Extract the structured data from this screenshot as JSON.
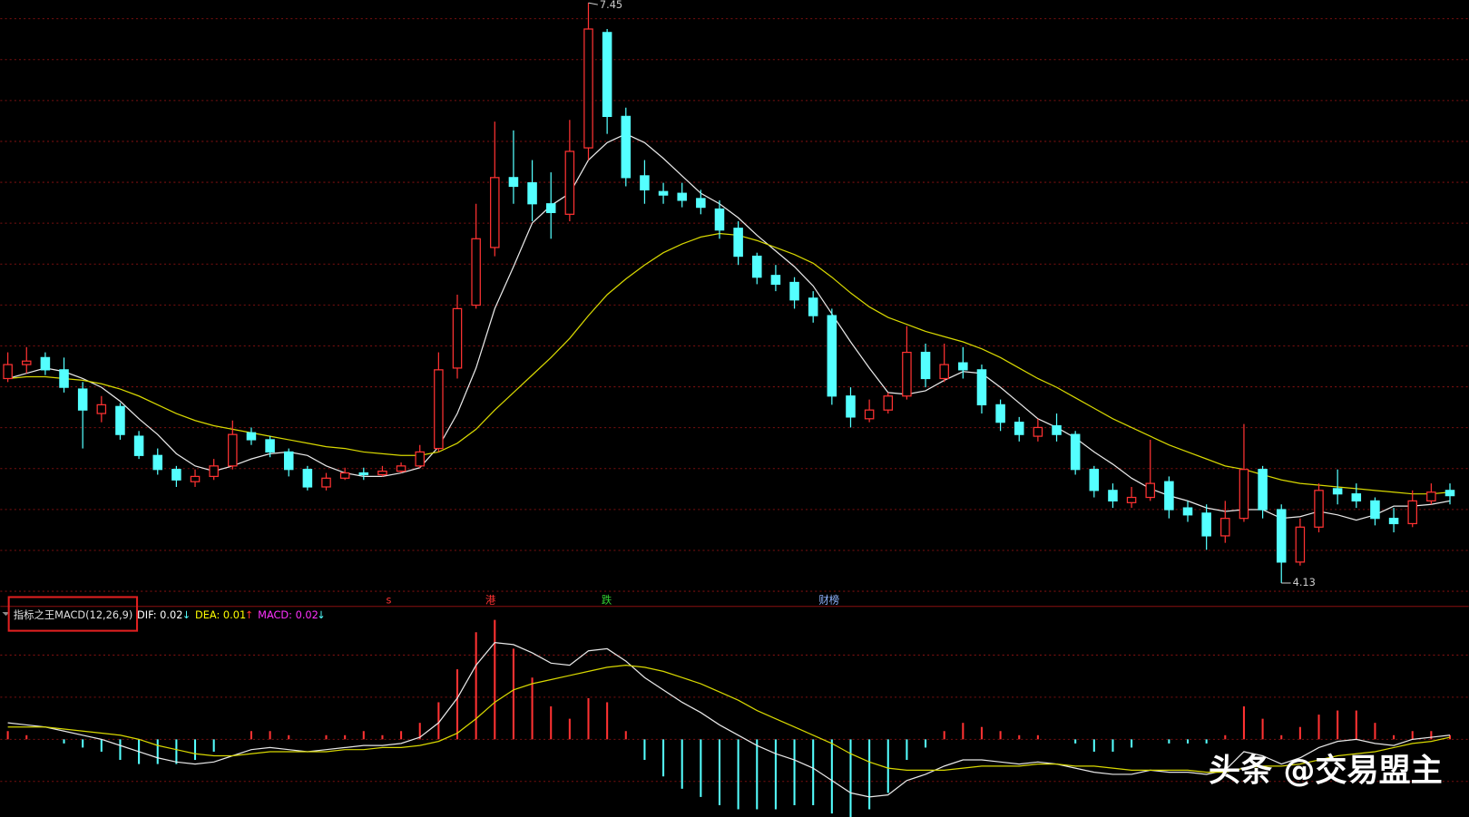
{
  "chart_data": [
    {
      "type": "candlestick",
      "up_color": "#ff3232",
      "down_color": "#54ffff",
      "open": [
        5.3,
        5.38,
        5.42,
        5.35,
        5.24,
        5.1,
        5.14,
        4.97,
        4.86,
        4.78,
        4.71,
        4.74,
        4.8,
        4.99,
        4.95,
        4.88,
        4.78,
        4.68,
        4.73,
        4.76,
        4.75,
        4.77,
        4.8,
        4.9,
        5.36,
        5.72,
        6.05,
        6.45,
        6.42,
        6.3,
        6.24,
        6.62,
        7.28,
        6.8,
        6.46,
        6.37,
        6.36,
        6.33,
        6.27,
        6.16,
        6.0,
        5.89,
        5.85,
        5.76,
        5.66,
        5.2,
        5.07,
        5.12,
        5.2,
        5.45,
        5.3,
        5.39,
        5.35,
        5.15,
        5.05,
        4.97,
        5.03,
        4.98,
        4.78,
        4.66,
        4.59,
        4.62,
        4.71,
        4.56,
        4.53,
        4.4,
        4.5,
        4.78,
        4.55,
        4.25,
        4.45,
        4.67,
        4.64,
        4.6,
        4.5,
        4.47,
        4.6,
        4.66
      ],
      "high": [
        5.45,
        5.48,
        5.45,
        5.42,
        5.28,
        5.2,
        5.16,
        5.0,
        4.9,
        4.8,
        4.78,
        4.84,
        5.06,
        5.02,
        4.97,
        4.9,
        4.8,
        4.76,
        4.79,
        4.79,
        4.8,
        4.82,
        4.92,
        5.45,
        5.78,
        6.3,
        6.77,
        6.72,
        6.55,
        6.48,
        6.78,
        7.45,
        7.3,
        6.85,
        6.55,
        6.42,
        6.42,
        6.38,
        6.32,
        6.2,
        6.02,
        5.95,
        5.88,
        5.8,
        5.7,
        5.25,
        5.18,
        5.22,
        5.6,
        5.5,
        5.5,
        5.48,
        5.38,
        5.18,
        5.08,
        5.07,
        5.1,
        5.0,
        4.8,
        4.7,
        4.68,
        4.95,
        4.74,
        4.6,
        4.58,
        4.6,
        5.04,
        4.8,
        4.58,
        4.5,
        4.7,
        4.78,
        4.7,
        4.62,
        4.56,
        4.66,
        4.7,
        4.7
      ],
      "low": [
        5.28,
        5.33,
        5.32,
        5.22,
        4.9,
        5.05,
        4.95,
        4.84,
        4.75,
        4.68,
        4.68,
        4.72,
        4.78,
        4.92,
        4.85,
        4.74,
        4.66,
        4.66,
        4.72,
        4.72,
        4.74,
        4.76,
        4.79,
        4.88,
        5.3,
        5.7,
        6.0,
        6.3,
        6.2,
        6.1,
        6.2,
        6.55,
        6.7,
        6.4,
        6.3,
        6.3,
        6.28,
        6.24,
        6.1,
        5.95,
        5.84,
        5.8,
        5.7,
        5.62,
        5.15,
        5.02,
        5.05,
        5.1,
        5.18,
        5.25,
        5.28,
        5.3,
        5.1,
        5.0,
        4.94,
        4.94,
        4.94,
        4.75,
        4.62,
        4.56,
        4.56,
        4.6,
        4.5,
        4.48,
        4.32,
        4.36,
        4.48,
        4.5,
        4.13,
        4.23,
        4.42,
        4.58,
        4.56,
        4.46,
        4.42,
        4.45,
        4.58,
        4.58
      ],
      "close": [
        5.38,
        5.4,
        5.35,
        5.25,
        5.12,
        5.15,
        4.98,
        4.86,
        4.78,
        4.72,
        4.74,
        4.8,
        4.98,
        4.95,
        4.88,
        4.78,
        4.68,
        4.73,
        4.76,
        4.75,
        4.77,
        4.8,
        4.88,
        5.35,
        5.7,
        6.1,
        6.45,
        6.4,
        6.3,
        6.25,
        6.6,
        7.3,
        6.8,
        6.45,
        6.38,
        6.35,
        6.32,
        6.28,
        6.15,
        6.0,
        5.88,
        5.84,
        5.75,
        5.66,
        5.2,
        5.08,
        5.12,
        5.2,
        5.45,
        5.3,
        5.38,
        5.35,
        5.15,
        5.05,
        4.98,
        5.02,
        4.98,
        4.78,
        4.66,
        4.6,
        4.62,
        4.7,
        4.55,
        4.52,
        4.4,
        4.5,
        4.78,
        4.55,
        4.25,
        4.45,
        4.66,
        4.64,
        4.6,
        4.5,
        4.47,
        4.6,
        4.65,
        4.63
      ],
      "lines": [
        {
          "color": "#e8e8e8",
          "values": [
            5.3,
            5.33,
            5.36,
            5.34,
            5.3,
            5.25,
            5.17,
            5.07,
            4.98,
            4.87,
            4.8,
            4.77,
            4.8,
            4.84,
            4.87,
            4.88,
            4.86,
            4.8,
            4.76,
            4.74,
            4.74,
            4.76,
            4.79,
            4.91,
            5.1,
            5.36,
            5.7,
            5.94,
            6.19,
            6.29,
            6.36,
            6.55,
            6.65,
            6.7,
            6.65,
            6.56,
            6.46,
            6.36,
            6.3,
            6.22,
            6.12,
            6.03,
            5.94,
            5.83,
            5.67,
            5.51,
            5.36,
            5.22,
            5.21,
            5.23,
            5.29,
            5.34,
            5.33,
            5.25,
            5.16,
            5.07,
            5.02,
            4.96,
            4.88,
            4.81,
            4.73,
            4.67,
            4.63,
            4.6,
            4.56,
            4.54,
            4.55,
            4.55,
            4.5,
            4.51,
            4.54,
            4.52,
            4.49,
            4.52,
            4.57,
            4.57,
            4.58,
            4.6
          ]
        },
        {
          "color": "#d8d800",
          "values": [
            5.3,
            5.31,
            5.31,
            5.3,
            5.29,
            5.27,
            5.24,
            5.2,
            5.15,
            5.1,
            5.06,
            5.03,
            5.01,
            4.99,
            4.97,
            4.95,
            4.93,
            4.91,
            4.9,
            4.88,
            4.87,
            4.86,
            4.86,
            4.88,
            4.93,
            5.01,
            5.12,
            5.22,
            5.32,
            5.42,
            5.53,
            5.66,
            5.78,
            5.87,
            5.95,
            6.02,
            6.07,
            6.11,
            6.13,
            6.12,
            6.09,
            6.05,
            6.01,
            5.96,
            5.88,
            5.79,
            5.71,
            5.65,
            5.61,
            5.57,
            5.54,
            5.51,
            5.47,
            5.42,
            5.36,
            5.3,
            5.25,
            5.19,
            5.13,
            5.07,
            5.02,
            4.97,
            4.92,
            4.88,
            4.84,
            4.8,
            4.78,
            4.75,
            4.72,
            4.7,
            4.69,
            4.68,
            4.67,
            4.66,
            4.65,
            4.64,
            4.64,
            4.65
          ]
        }
      ],
      "annotations": [
        {
          "value": 7.45,
          "text": "7.45",
          "at": "high"
        },
        {
          "value": 4.13,
          "text": "4.13",
          "at": "low"
        }
      ],
      "events": [
        {
          "text": "s",
          "color": "#ff3232"
        },
        {
          "text": "港",
          "color": "#ff3232"
        },
        {
          "text": "跌",
          "color": "#32d232"
        },
        {
          "text": "财榜",
          "color": "#8fb4ff"
        }
      ]
    },
    {
      "type": "macd",
      "title": "指标之王MACD(12,26,9)",
      "readouts": [
        {
          "label": "DIF: 0.02",
          "arrow": "↓",
          "color": "#ffffff",
          "arrow_color": "#54ffff"
        },
        {
          "label": "DEA: 0.01",
          "arrow": "↑",
          "color": "#ffff00",
          "arrow_color": "#ff3232"
        },
        {
          "label": "MACD: 0.02",
          "arrow": "↓",
          "color": "#ff32ff",
          "arrow_color": "#54ffff"
        }
      ],
      "series": [
        {
          "color": "#e8e8e8",
          "values": [
            0.08,
            0.07,
            0.06,
            0.04,
            0.02,
            0.0,
            -0.03,
            -0.06,
            -0.09,
            -0.11,
            -0.12,
            -0.11,
            -0.08,
            -0.05,
            -0.04,
            -0.05,
            -0.06,
            -0.05,
            -0.04,
            -0.03,
            -0.03,
            -0.02,
            0.01,
            0.08,
            0.2,
            0.36,
            0.47,
            0.46,
            0.42,
            0.37,
            0.36,
            0.43,
            0.44,
            0.38,
            0.3,
            0.24,
            0.18,
            0.13,
            0.07,
            0.02,
            -0.03,
            -0.07,
            -0.1,
            -0.14,
            -0.2,
            -0.26,
            -0.28,
            -0.27,
            -0.2,
            -0.17,
            -0.13,
            -0.1,
            -0.1,
            -0.11,
            -0.12,
            -0.11,
            -0.12,
            -0.14,
            -0.16,
            -0.17,
            -0.17,
            -0.15,
            -0.16,
            -0.16,
            -0.17,
            -0.15,
            -0.06,
            -0.08,
            -0.12,
            -0.09,
            -0.04,
            -0.01,
            0.0,
            -0.02,
            -0.03,
            0.0,
            0.01,
            0.02
          ]
        },
        {
          "color": "#d8d800",
          "values": [
            0.06,
            0.06,
            0.06,
            0.05,
            0.04,
            0.03,
            0.02,
            0.0,
            -0.03,
            -0.05,
            -0.07,
            -0.08,
            -0.08,
            -0.07,
            -0.06,
            -0.06,
            -0.06,
            -0.06,
            -0.05,
            -0.05,
            -0.04,
            -0.04,
            -0.03,
            -0.01,
            0.03,
            0.1,
            0.18,
            0.24,
            0.27,
            0.29,
            0.31,
            0.33,
            0.35,
            0.36,
            0.35,
            0.33,
            0.3,
            0.27,
            0.23,
            0.19,
            0.14,
            0.1,
            0.06,
            0.02,
            -0.02,
            -0.07,
            -0.11,
            -0.14,
            -0.15,
            -0.15,
            -0.15,
            -0.14,
            -0.13,
            -0.13,
            -0.13,
            -0.12,
            -0.12,
            -0.13,
            -0.13,
            -0.14,
            -0.15,
            -0.15,
            -0.15,
            -0.15,
            -0.16,
            -0.16,
            -0.14,
            -0.13,
            -0.13,
            -0.12,
            -0.1,
            -0.08,
            -0.07,
            -0.06,
            -0.04,
            -0.02,
            -0.01,
            0.01
          ]
        }
      ],
      "histogram": {
        "up_color": "#ff3232",
        "down_color": "#54ffff",
        "values": [
          0.04,
          0.02,
          0.0,
          -0.02,
          -0.04,
          -0.06,
          -0.1,
          -0.12,
          -0.12,
          -0.12,
          -0.1,
          -0.06,
          0.0,
          0.04,
          0.04,
          0.02,
          0.0,
          0.02,
          0.02,
          0.04,
          0.02,
          0.04,
          0.08,
          0.18,
          0.34,
          0.52,
          0.58,
          0.44,
          0.3,
          0.16,
          0.1,
          0.2,
          0.18,
          0.04,
          -0.1,
          -0.18,
          -0.24,
          -0.28,
          -0.32,
          -0.34,
          -0.34,
          -0.34,
          -0.32,
          -0.32,
          -0.36,
          -0.38,
          -0.34,
          -0.26,
          -0.1,
          -0.04,
          0.04,
          0.08,
          0.06,
          0.04,
          0.02,
          0.02,
          0.0,
          -0.02,
          -0.06,
          -0.06,
          -0.04,
          0.0,
          -0.02,
          -0.02,
          -0.02,
          0.02,
          0.16,
          0.1,
          0.02,
          0.06,
          0.12,
          0.14,
          0.14,
          0.08,
          0.02,
          0.04,
          0.04,
          0.02
        ]
      }
    }
  ],
  "watermark": "头条 @交易盟主"
}
